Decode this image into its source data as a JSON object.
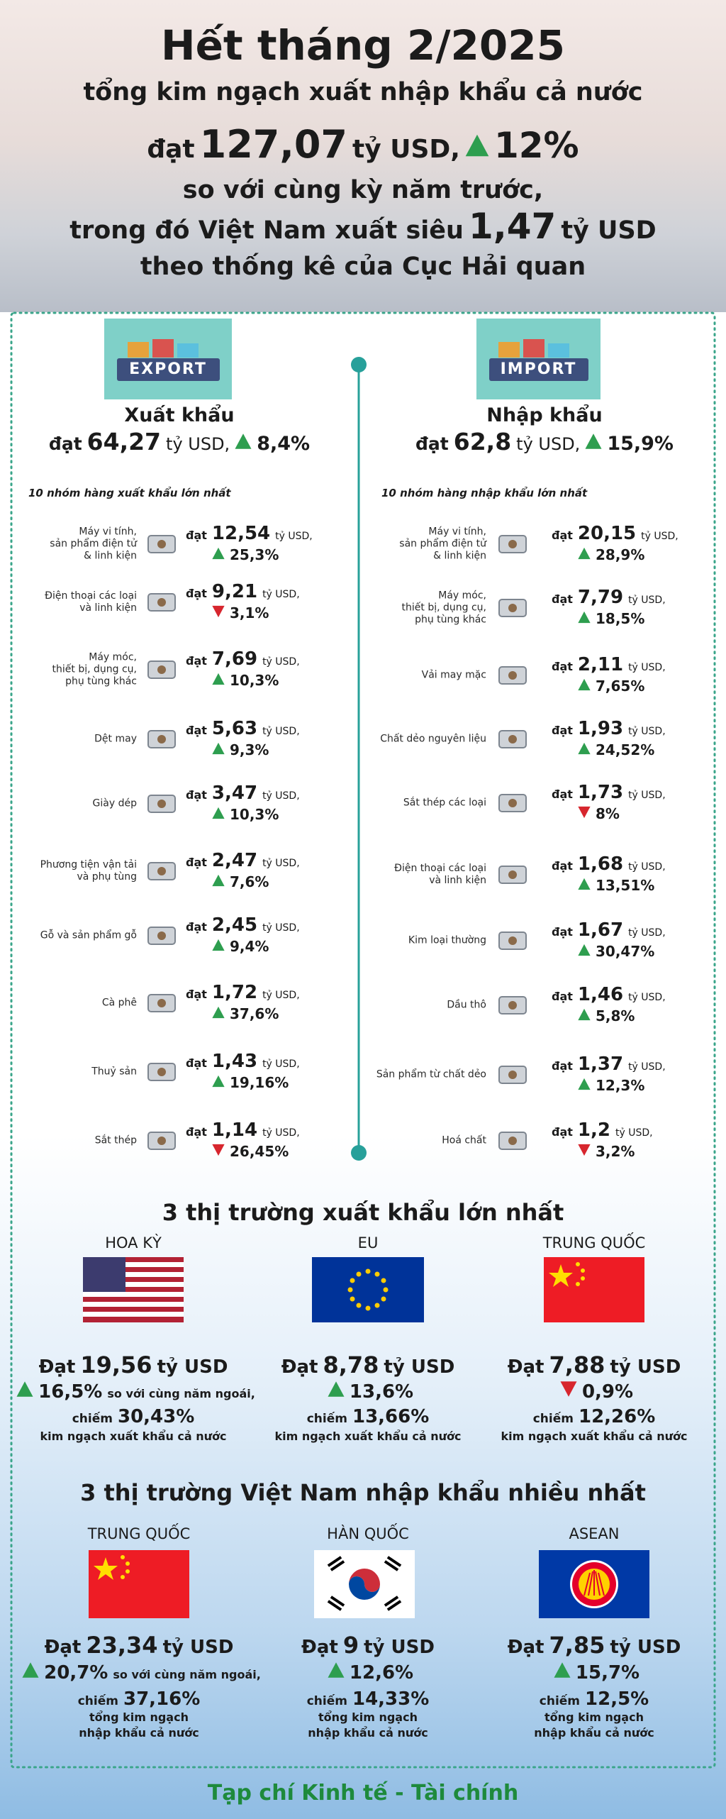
{
  "header": {
    "title": "Hết tháng 2/2025",
    "line2": "tổng kim ngạch xuất nhập khẩu cả nước",
    "total": {
      "prefix": "đạt",
      "value": "127,07",
      "unit": "tỷ USD,",
      "change": "12%",
      "trend": "up"
    },
    "line4": "so với cùng kỳ năm trước,",
    "surplus": {
      "text": "trong đó Việt Nam xuất siêu",
      "value": "1,47",
      "unit": "tỷ USD"
    },
    "line6": "theo thống kê của Cục Hải quan"
  },
  "export": {
    "image_label": "EXPORT",
    "title": "Xuất khẩu",
    "total": {
      "prefix": "đạt",
      "value": "64,27",
      "unit": "tỷ USD,",
      "change": "8,4%",
      "trend": "up"
    },
    "list_title": "10 nhóm hàng xuất khẩu lớn nhất",
    "items": [
      {
        "label": "Máy vi tính,\nsản phẩm điện tử\n& linh kiện",
        "prefix": "đạt",
        "value": "12,54",
        "unit": "tỷ USD,",
        "change": "25,3%",
        "trend": "up"
      },
      {
        "label": "Điện thoại các loại\nvà linh kiện",
        "prefix": "đạt",
        "value": "9,21",
        "unit": "tỷ USD,",
        "change": "3,1%",
        "trend": "down"
      },
      {
        "label": "Máy móc,\nthiết bị, dụng cụ,\nphụ tùng khác",
        "prefix": "đạt",
        "value": "7,69",
        "unit": "tỷ USD,",
        "change": "10,3%",
        "trend": "up"
      },
      {
        "label": "Dệt may",
        "prefix": "đạt",
        "value": "5,63",
        "unit": "tỷ USD,",
        "change": "9,3%",
        "trend": "up"
      },
      {
        "label": "Giày dép",
        "prefix": "đạt",
        "value": "3,47",
        "unit": "tỷ USD,",
        "change": "10,3%",
        "trend": "up"
      },
      {
        "label": "Phương tiện vận tải\nvà phụ tùng",
        "prefix": "đạt",
        "value": "2,47",
        "unit": "tỷ USD,",
        "change": "7,6%",
        "trend": "up"
      },
      {
        "label": "Gỗ và sản phẩm gỗ",
        "prefix": "đạt",
        "value": "2,45",
        "unit": "tỷ USD,",
        "change": "9,4%",
        "trend": "up"
      },
      {
        "label": "Cà phê",
        "prefix": "đạt",
        "value": "1,72",
        "unit": "tỷ USD,",
        "change": "37,6%",
        "trend": "up"
      },
      {
        "label": "Thuỷ sản",
        "prefix": "đạt",
        "value": "1,43",
        "unit": "tỷ USD,",
        "change": "19,16%",
        "trend": "up"
      },
      {
        "label": "Sắt thép",
        "prefix": "đạt",
        "value": "1,14",
        "unit": "tỷ USD,",
        "change": "26,45%",
        "trend": "down"
      }
    ]
  },
  "import": {
    "image_label": "IMPORT",
    "title": "Nhập khẩu",
    "total": {
      "prefix": "đạt",
      "value": "62,8",
      "unit": "tỷ USD,",
      "change": "15,9%",
      "trend": "up"
    },
    "list_title": "10 nhóm hàng nhập khẩu lớn nhất",
    "items": [
      {
        "label": "Máy vi tính,\nsản phẩm điện tử\n& linh kiện",
        "prefix": "đạt",
        "value": "20,15",
        "unit": "tỷ USD,",
        "change": "28,9%",
        "trend": "up"
      },
      {
        "label": "Máy móc,\nthiết bị, dụng cụ,\nphụ tùng khác",
        "prefix": "đạt",
        "value": "7,79",
        "unit": "tỷ USD,",
        "change": "18,5%",
        "trend": "up"
      },
      {
        "label": "Vải may mặc",
        "prefix": "đạt",
        "value": "2,11",
        "unit": "tỷ USD,",
        "change": "7,65%",
        "trend": "up"
      },
      {
        "label": "Chất dẻo nguyên liệu",
        "prefix": "đạt",
        "value": "1,93",
        "unit": "tỷ USD,",
        "change": "24,52%",
        "trend": "up"
      },
      {
        "label": "Sắt thép các loại",
        "prefix": "đạt",
        "value": "1,73",
        "unit": "tỷ USD,",
        "change": "8%",
        "trend": "down"
      },
      {
        "label": "Điện thoại các loại\nvà linh kiện",
        "prefix": "đạt",
        "value": "1,68",
        "unit": "tỷ USD,",
        "change": "13,51%",
        "trend": "up"
      },
      {
        "label": "Kim loại thường",
        "prefix": "đạt",
        "value": "1,67",
        "unit": "tỷ USD,",
        "change": "30,47%",
        "trend": "up"
      },
      {
        "label": "Dầu thô",
        "prefix": "đạt",
        "value": "1,46",
        "unit": "tỷ USD,",
        "change": "5,8%",
        "trend": "up"
      },
      {
        "label": "Sản phẩm từ chất dẻo",
        "prefix": "đạt",
        "value": "1,37",
        "unit": "tỷ USD,",
        "change": "12,3%",
        "trend": "up"
      },
      {
        "label": "Hoá chất",
        "prefix": "đạt",
        "value": "1,2",
        "unit": "tỷ USD,",
        "change": "3,2%",
        "trend": "down"
      }
    ]
  },
  "export_markets": {
    "title": "3 thị trường xuất khẩu lớn nhất",
    "markets": [
      {
        "name": "HOA KỲ",
        "prefix": "Đạt",
        "value": "19,56",
        "unit": "tỷ USD",
        "change": "16,5%",
        "trend": "up",
        "change_note": "so với cùng năm ngoái,",
        "share_prefix": "chiếm",
        "share": "30,43%",
        "share_note": "kim ngạch xuất khẩu cả nước"
      },
      {
        "name": "EU",
        "prefix": "Đạt",
        "value": "8,78",
        "unit": "tỷ USD",
        "change": "13,6%",
        "trend": "up",
        "share_prefix": "chiếm",
        "share": "13,66%",
        "share_note": "kim ngạch xuất khẩu cả nước"
      },
      {
        "name": "TRUNG QUỐC",
        "prefix": "Đạt",
        "value": "7,88",
        "unit": "tỷ USD",
        "change": "0,9%",
        "trend": "down",
        "share_prefix": "chiếm",
        "share": "12,26%",
        "share_note": "kim ngạch xuất khẩu cả nước"
      }
    ]
  },
  "import_markets": {
    "title": "3 thị trường Việt Nam nhập khẩu nhiều nhất",
    "markets": [
      {
        "name": "TRUNG QUỐC",
        "prefix": "Đạt",
        "value": "23,34",
        "unit": "tỷ USD",
        "change": "20,7%",
        "trend": "up",
        "change_note": "so với cùng năm ngoái,",
        "share_prefix": "chiếm",
        "share": "37,16%",
        "share_note": "tổng kim ngạch\nnhập khẩu cả nước"
      },
      {
        "name": "HÀN QUỐC",
        "prefix": "Đạt",
        "value": "9",
        "unit": "tỷ USD",
        "change": "12,6%",
        "trend": "up",
        "share_prefix": "chiếm",
        "share": "14,33%",
        "share_note": "tổng kim ngạch\nnhập khẩu cả nước"
      },
      {
        "name": "ASEAN",
        "prefix": "Đạt",
        "value": "7,85",
        "unit": "tỷ USD",
        "change": "15,7%",
        "trend": "up",
        "share_prefix": "chiếm",
        "share": "12,5%",
        "share_note": "tổng kim ngạch\nnhập khẩu cả nước"
      }
    ]
  },
  "footer": "Tạp chí Kinh tế - Tài chính"
}
